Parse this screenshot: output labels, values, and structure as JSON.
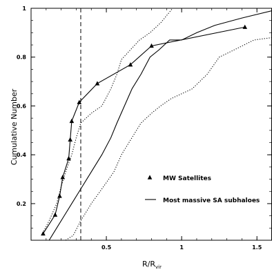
{
  "chart_data": {
    "type": "line",
    "xlabel": "R/R",
    "xlabel_sub": "vir",
    "ylabel": "Cumulative Number",
    "xlim": [
      0,
      1.6
    ],
    "ylim": [
      0.05,
      1.0
    ],
    "x_ticks": [
      {
        "value": 0.5,
        "label": "0.5"
      },
      {
        "value": 1.0,
        "label": "1"
      },
      {
        "value": 1.5,
        "label": "1.5"
      }
    ],
    "y_ticks": [
      {
        "value": 0.2,
        "label": "0.2"
      },
      {
        "value": 0.4,
        "label": "0.4"
      },
      {
        "value": 0.6,
        "label": "0.6"
      },
      {
        "value": 0.8,
        "label": "0.8"
      },
      {
        "value": 1.0,
        "label": "1"
      }
    ],
    "vertical_line_x": 0.33,
    "legend": [
      {
        "marker": "triangle",
        "label": "MW Satellites"
      },
      {
        "marker": "line",
        "label": "Most massive SA subhaloes"
      }
    ],
    "series": [
      {
        "style": "triangle-line",
        "x": [
          0.08,
          0.16,
          0.19,
          0.21,
          0.25,
          0.26,
          0.27,
          0.32,
          0.44,
          0.66,
          0.8,
          1.42
        ],
        "y": [
          0.077,
          0.154,
          0.231,
          0.308,
          0.385,
          0.462,
          0.538,
          0.615,
          0.692,
          0.769,
          0.846,
          0.923
        ]
      },
      {
        "style": "solid",
        "x": [
          0.12,
          0.17,
          0.22,
          0.27,
          0.33,
          0.4,
          0.47,
          0.53,
          0.57,
          0.62,
          0.67,
          0.73,
          0.79,
          0.85,
          0.92,
          1.0,
          1.1,
          1.22,
          1.4,
          1.6
        ],
        "y": [
          0.05,
          0.1,
          0.15,
          0.2,
          0.26,
          0.33,
          0.4,
          0.47,
          0.53,
          0.6,
          0.67,
          0.73,
          0.8,
          0.83,
          0.87,
          0.87,
          0.9,
          0.93,
          0.96,
          0.99
        ]
      },
      {
        "style": "dotted",
        "x": [
          0.07,
          0.12,
          0.17,
          0.2,
          0.23,
          0.27,
          0.3,
          0.33,
          0.4,
          0.47,
          0.53,
          0.57,
          0.6,
          0.66,
          0.72,
          0.79,
          0.86,
          0.94
        ],
        "y": [
          0.07,
          0.13,
          0.2,
          0.27,
          0.33,
          0.4,
          0.47,
          0.53,
          0.57,
          0.6,
          0.67,
          0.73,
          0.79,
          0.83,
          0.87,
          0.9,
          0.94,
          1.0
        ]
      },
      {
        "style": "dotted",
        "x": [
          0.23,
          0.28,
          0.33,
          0.4,
          0.47,
          0.55,
          0.6,
          0.67,
          0.73,
          0.8,
          0.86,
          0.93,
          1.07,
          1.17,
          1.25,
          1.35,
          1.48,
          1.6
        ],
        "y": [
          0.05,
          0.07,
          0.13,
          0.2,
          0.26,
          0.33,
          0.4,
          0.47,
          0.53,
          0.57,
          0.6,
          0.63,
          0.67,
          0.73,
          0.8,
          0.83,
          0.87,
          0.88
        ]
      }
    ]
  }
}
